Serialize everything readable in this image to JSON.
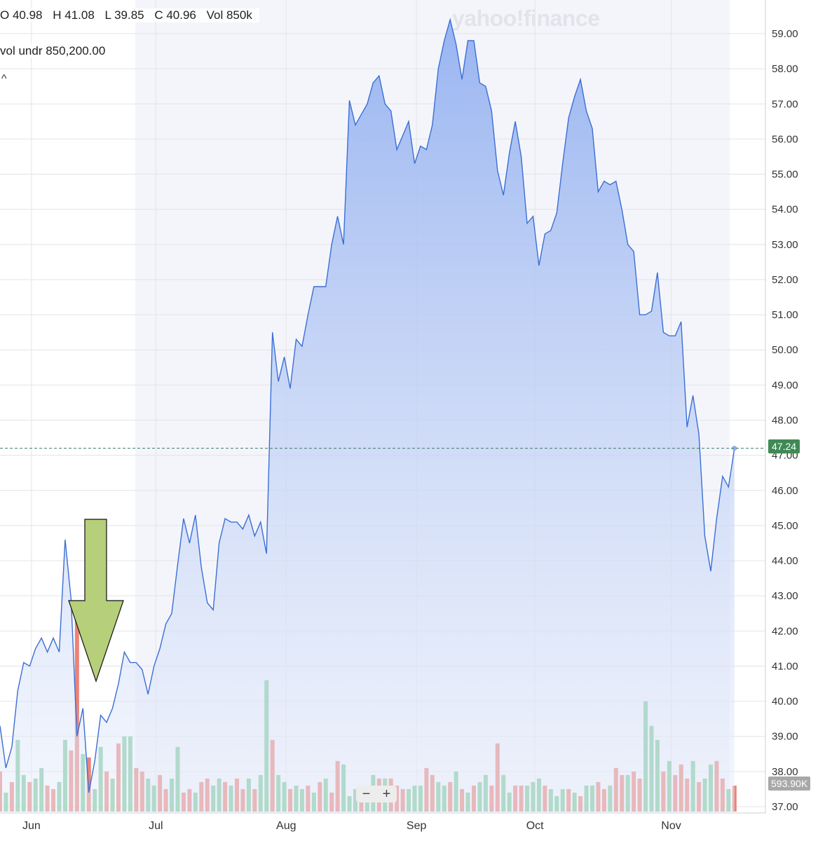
{
  "header": {
    "ohlc": {
      "open": "O 40.98",
      "high": "H 41.08",
      "low": "L 39.85",
      "close": "C 40.96",
      "vol": "Vol 850k"
    },
    "vol_undr": "vol undr  850,200.00",
    "collapse_icon": "^"
  },
  "watermark": "yahoo!finance",
  "zoom": {
    "minus": "−",
    "plus": "+"
  },
  "colors": {
    "line": "#3b6fd4",
    "area": "#a6bff2",
    "vol_up": "#6cc28d",
    "vol_down": "#e8766a",
    "price_badge": "#3f8a54",
    "arrow": "#b5cf7a"
  },
  "chart_data": {
    "type": "area",
    "ylim": [
      37,
      59
    ],
    "y_ticks": [
      "37.00",
      "38.00",
      "39.00",
      "40.00",
      "41.00",
      "42.00",
      "43.00",
      "44.00",
      "45.00",
      "46.00",
      "47.00",
      "48.00",
      "49.00",
      "50.00",
      "51.00",
      "52.00",
      "53.00",
      "54.00",
      "55.00",
      "56.00",
      "57.00",
      "58.00",
      "59.00"
    ],
    "x_ticks": [
      {
        "label": "Jun",
        "i": 2
      },
      {
        "label": "Jul",
        "i": 23
      },
      {
        "label": "Aug",
        "i": 45
      },
      {
        "label": "Sep",
        "i": 67
      },
      {
        "label": "Oct",
        "i": 87
      },
      {
        "label": "Nov",
        "i": 110
      }
    ],
    "last_price": "47.24",
    "last_volume": "593.90K",
    "price": [
      39.3,
      38.1,
      38.7,
      40.3,
      41.1,
      41.0,
      41.5,
      41.8,
      41.4,
      41.8,
      41.4,
      44.6,
      42.9,
      39.0,
      39.8,
      37.4,
      38.3,
      39.6,
      39.4,
      39.8,
      40.5,
      41.4,
      41.1,
      41.1,
      40.9,
      40.2,
      41.0,
      41.5,
      42.2,
      42.5,
      43.9,
      45.2,
      44.5,
      45.3,
      43.8,
      42.8,
      42.6,
      44.5,
      45.2,
      45.1,
      45.1,
      44.9,
      45.3,
      44.7,
      45.1,
      44.2,
      50.5,
      49.1,
      49.8,
      48.9,
      50.3,
      50.1,
      51.0,
      51.8,
      51.8,
      51.8,
      53.0,
      53.8,
      53.0,
      57.1,
      56.4,
      56.7,
      57.0,
      57.6,
      57.8,
      57.0,
      56.8,
      55.7,
      56.1,
      56.5,
      55.3,
      55.8,
      55.7,
      56.4,
      58.0,
      58.8,
      59.4,
      58.7,
      57.7,
      58.8,
      58.8,
      57.6,
      57.5,
      56.8,
      55.1,
      54.4,
      55.6,
      56.5,
      55.5,
      53.6,
      53.8,
      52.4,
      53.3,
      53.4,
      53.9,
      55.3,
      56.6,
      57.2,
      57.7,
      56.8,
      56.3,
      54.5,
      54.8,
      54.7,
      54.8,
      54.0,
      53.0,
      52.8,
      51.0,
      51.0,
      51.1,
      52.2,
      50.5,
      50.4,
      50.4,
      50.8,
      47.8,
      48.7,
      47.6,
      44.7,
      43.7,
      45.2,
      46.4,
      46.1,
      47.2
    ],
    "volume": [
      38.0,
      37.4,
      37.7,
      38.9,
      37.9,
      37.7,
      37.8,
      38.1,
      37.6,
      37.5,
      37.7,
      38.9,
      38.6,
      42.4,
      38.5,
      38.4,
      37.5,
      38.7,
      38.0,
      37.8,
      38.8,
      39.0,
      39.0,
      38.1,
      38.0,
      37.8,
      37.6,
      37.9,
      37.5,
      37.8,
      38.7,
      37.4,
      37.5,
      37.4,
      37.7,
      37.8,
      37.6,
      37.8,
      37.7,
      37.6,
      37.8,
      37.5,
      37.8,
      37.5,
      37.9,
      40.6,
      38.9,
      37.9,
      37.7,
      37.5,
      37.6,
      37.5,
      37.6,
      37.4,
      37.7,
      37.8,
      37.4,
      38.3,
      38.2,
      37.3,
      37.5,
      37.6,
      37.5,
      37.9,
      37.8,
      37.8,
      37.8,
      37.6,
      37.5,
      37.5,
      37.6,
      37.6,
      38.1,
      37.9,
      37.7,
      37.6,
      37.7,
      38.0,
      37.5,
      37.4,
      37.6,
      37.7,
      37.9,
      37.6,
      38.8,
      37.9,
      37.4,
      37.6,
      37.6,
      37.6,
      37.7,
      37.8,
      37.6,
      37.5,
      37.3,
      37.5,
      37.5,
      37.4,
      37.3,
      37.6,
      37.6,
      37.7,
      37.5,
      37.6,
      38.1,
      37.9,
      37.9,
      38.0,
      37.8,
      40.0,
      39.3,
      38.9,
      38.0,
      38.3,
      37.9,
      38.2,
      37.8,
      38.3,
      37.7,
      37.8,
      38.2,
      38.3,
      37.8,
      37.5,
      37.6
    ],
    "volume_up": [
      false,
      true,
      false,
      true,
      true,
      false,
      true,
      true,
      false,
      false,
      true,
      true,
      false,
      false,
      true,
      false,
      true,
      true,
      false,
      true,
      false,
      true,
      true,
      false,
      false,
      true,
      true,
      false,
      false,
      true,
      true,
      false,
      false,
      true,
      false,
      false,
      true,
      true,
      false,
      true,
      false,
      false,
      true,
      false,
      true,
      true,
      false,
      true,
      true,
      false,
      true,
      true,
      false,
      true,
      false,
      true,
      false,
      false,
      true,
      true,
      true,
      false,
      true,
      true,
      false,
      true,
      false,
      false,
      false,
      true,
      true,
      true,
      false,
      false,
      true,
      true,
      false,
      true,
      false,
      true,
      false,
      true,
      true,
      false,
      false,
      true,
      true,
      false,
      false,
      true,
      true,
      true,
      false,
      true,
      true,
      true,
      false,
      true,
      false,
      true,
      true,
      false,
      false,
      true,
      false,
      false,
      true,
      false,
      false,
      true,
      true,
      true,
      false,
      true,
      false,
      false,
      false,
      true,
      false,
      true,
      true,
      false,
      false,
      true,
      false,
      true
    ]
  }
}
